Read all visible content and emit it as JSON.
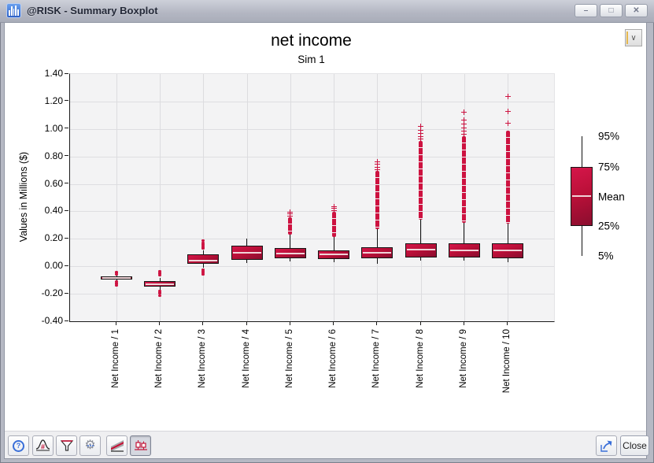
{
  "window": {
    "title": "@RISK - Summary Boxplot",
    "controls": {
      "minimize": "–",
      "maximize": "□",
      "close": "✕"
    }
  },
  "icons": {
    "app": "histogram-icon",
    "dropdown_chevron": "∨",
    "help": "?",
    "gear": "⚙"
  },
  "chart_data": {
    "type": "boxplot",
    "title": "net income",
    "subtitle": "Sim 1",
    "ylabel": "Values in Millions ($)",
    "ylim": [
      -0.4,
      1.4
    ],
    "ytick_step": 0.2,
    "grid": true,
    "categories": [
      "Net Income / 1",
      "Net Income / 2",
      "Net Income / 3",
      "Net Income / 4",
      "Net Income / 5",
      "Net Income / 6",
      "Net Income / 7",
      "Net Income / 8",
      "Net Income / 9",
      "Net Income / 10"
    ],
    "legend": {
      "position": "right",
      "labels": [
        "95%",
        "75%",
        "Mean",
        "25%",
        "5%"
      ]
    },
    "colors": {
      "box_top": "#d5164a",
      "box_bottom": "#8a0d2e",
      "outlier": "#cd1240",
      "mean_line": "#f0d3d8"
    },
    "boxes": [
      {
        "p5": -0.112,
        "q1": -0.097,
        "mean": -0.086,
        "q3": -0.075,
        "p95": -0.062,
        "dots": [
          -0.044,
          -0.05,
          -0.057,
          -0.113,
          -0.12,
          -0.128,
          -0.138
        ],
        "dense": null,
        "plus": []
      },
      {
        "p5": -0.168,
        "q1": -0.146,
        "mean": -0.128,
        "q3": -0.106,
        "p95": -0.082,
        "dots": [
          -0.038,
          -0.046,
          -0.054,
          -0.062,
          -0.178,
          -0.188,
          -0.198,
          -0.212
        ],
        "dense": null,
        "plus": []
      },
      {
        "p5": -0.012,
        "q1": 0.017,
        "mean": 0.042,
        "q3": 0.086,
        "p95": 0.115,
        "dots": [
          0.128,
          0.138,
          0.148,
          0.16,
          0.172,
          0.188,
          -0.022,
          -0.034,
          -0.047,
          -0.06
        ],
        "dense": null,
        "plus": []
      },
      {
        "p5": 0.023,
        "q1": 0.046,
        "mean": 0.096,
        "q3": 0.149,
        "p95": 0.2,
        "dots": [],
        "dense": null,
        "plus": []
      },
      {
        "p5": 0.034,
        "q1": 0.057,
        "mean": 0.094,
        "q3": 0.132,
        "p95": 0.23,
        "dots": [],
        "dense": [
          0.23,
          0.358
        ],
        "plus": [
          0.368,
          0.38,
          0.393
        ]
      },
      {
        "p5": 0.03,
        "q1": 0.052,
        "mean": 0.085,
        "q3": 0.115,
        "p95": 0.212,
        "dots": [],
        "dense": [
          0.212,
          0.398
        ],
        "plus": [
          0.408,
          0.42,
          0.432
        ]
      },
      {
        "p5": 0.02,
        "q1": 0.057,
        "mean": 0.1,
        "q3": 0.138,
        "p95": 0.27,
        "dots": [],
        "dense": [
          0.27,
          0.695
        ],
        "plus": [
          0.705,
          0.72,
          0.742,
          0.762
        ]
      },
      {
        "p5": 0.04,
        "q1": 0.063,
        "mean": 0.122,
        "q3": 0.17,
        "p95": 0.34,
        "dots": [],
        "dense": [
          0.34,
          0.912
        ],
        "plus": [
          0.928,
          0.947,
          0.968,
          0.992,
          1.016
        ]
      },
      {
        "p5": 0.04,
        "q1": 0.063,
        "mean": 0.118,
        "q3": 0.166,
        "p95": 0.315,
        "dots": [],
        "dense": [
          0.315,
          0.95
        ],
        "plus": [
          0.962,
          0.984,
          1.008,
          1.035,
          1.062,
          1.12
        ]
      },
      {
        "p5": 0.03,
        "q1": 0.057,
        "mean": 0.118,
        "q3": 0.166,
        "p95": 0.31,
        "dots": [],
        "dense": [
          0.31,
          0.988
        ],
        "plus": [
          1.04,
          1.13,
          1.235
        ]
      }
    ]
  },
  "toolbar": {
    "buttons": [
      {
        "label": "help"
      },
      {
        "label": "distribution"
      },
      {
        "label": "filter"
      },
      {
        "label": "settings"
      },
      {
        "label": "summary-trend"
      },
      {
        "label": "summary-boxplot",
        "active": true
      }
    ],
    "close_label": "Close"
  }
}
